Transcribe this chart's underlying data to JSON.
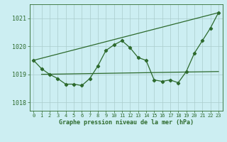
{
  "title": "Graphe pression niveau de la mer (hPa)",
  "bg_color": "#cceef2",
  "line_color": "#2d6a2d",
  "grid_color": "#aacccc",
  "xlim": [
    -0.5,
    23.5
  ],
  "ylim": [
    1017.7,
    1021.5
  ],
  "yticks": [
    1018,
    1019,
    1020,
    1021
  ],
  "xticks": [
    0,
    1,
    2,
    3,
    4,
    5,
    6,
    7,
    8,
    9,
    10,
    11,
    12,
    13,
    14,
    15,
    16,
    17,
    18,
    19,
    20,
    21,
    22,
    23
  ],
  "main_data_x": [
    0,
    1,
    2,
    3,
    4,
    5,
    6,
    7,
    8,
    9,
    10,
    11,
    12,
    13,
    14,
    15,
    16,
    17,
    18,
    19,
    20,
    21,
    22,
    23
  ],
  "main_data_y": [
    1019.5,
    1019.2,
    1019.0,
    1018.85,
    1018.65,
    1018.65,
    1018.6,
    1018.85,
    1019.3,
    1019.85,
    1020.05,
    1020.2,
    1019.95,
    1019.6,
    1019.5,
    1018.8,
    1018.75,
    1018.8,
    1018.7,
    1019.1,
    1019.75,
    1020.2,
    1020.65,
    1021.2
  ],
  "diag_line_x": [
    0,
    23
  ],
  "diag_line_y": [
    1019.5,
    1021.2
  ],
  "flat_line_x": [
    1,
    23
  ],
  "flat_line_y": [
    1019.0,
    1019.1
  ]
}
